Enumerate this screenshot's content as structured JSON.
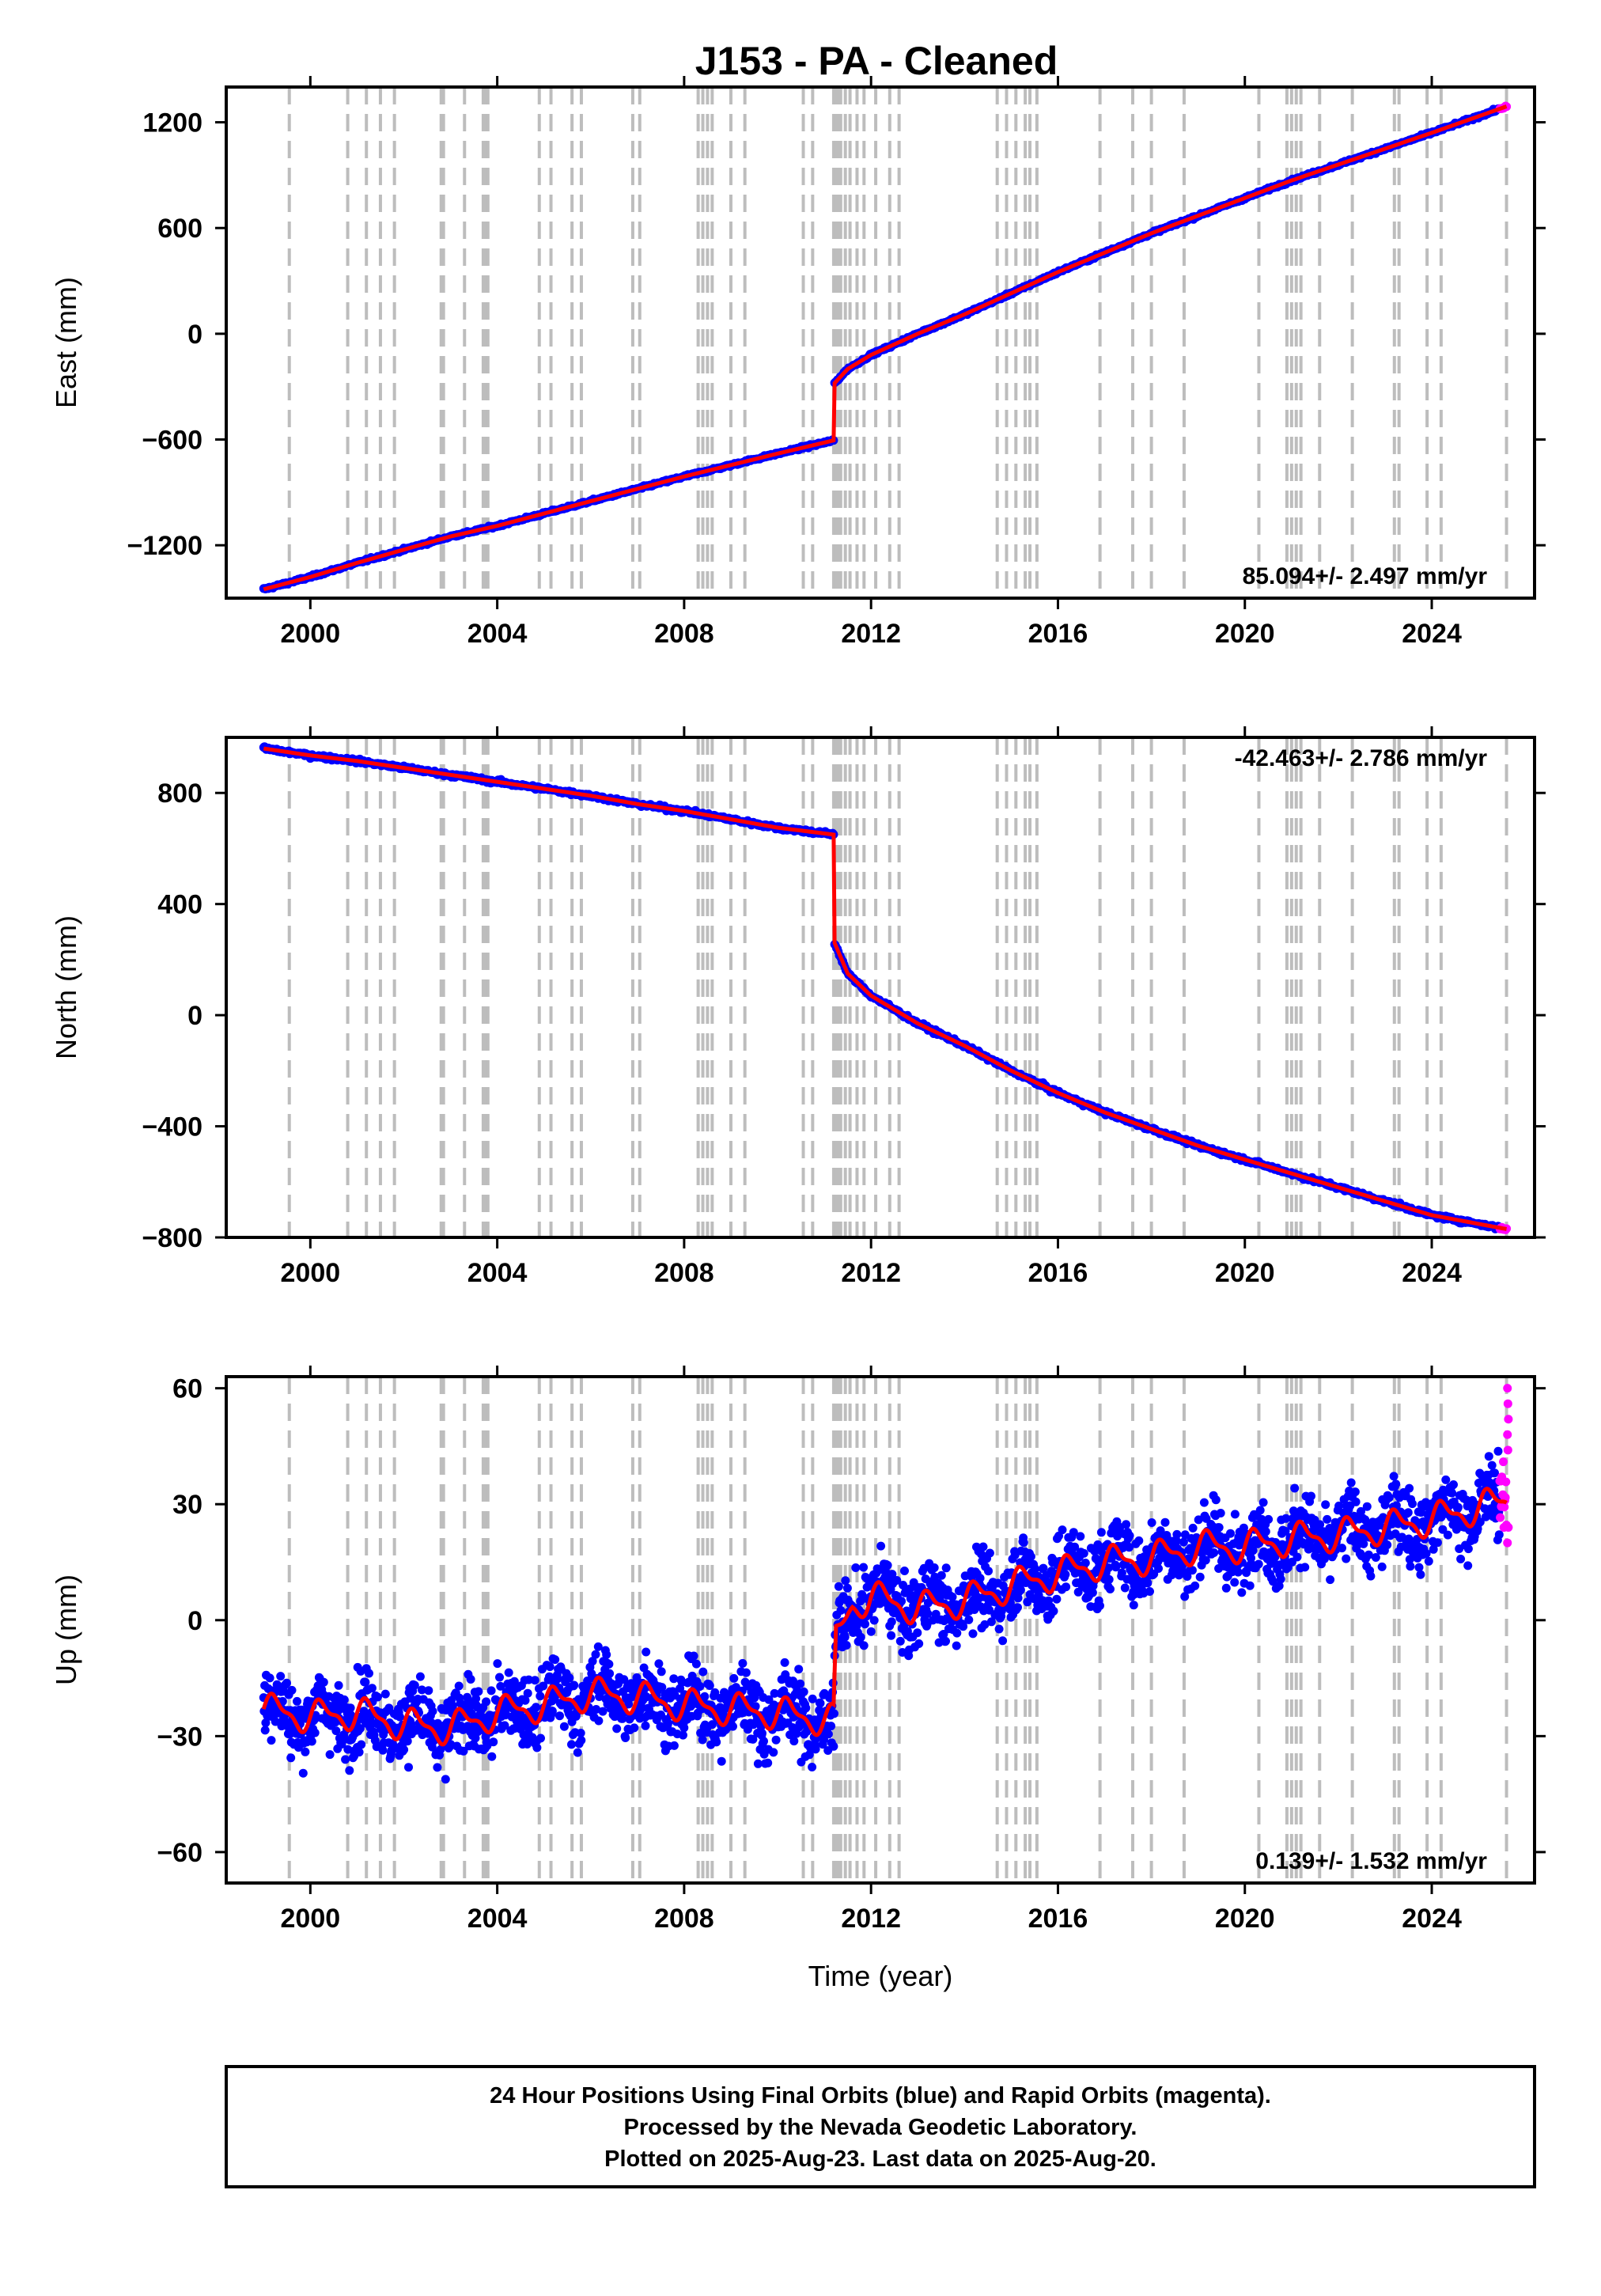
{
  "title": "J153  - PA - Cleaned",
  "footer": {
    "line1": "24 Hour Positions Using Final Orbits (blue) and Rapid Orbits (magenta).",
    "line2": "Processed by the Nevada Geodetic Laboratory.",
    "line3": "Plotted on 2025-Aug-23. Last data on 2025-Aug-20."
  },
  "colors": {
    "final": "#0000ff",
    "rapid": "#ff00ff",
    "model": "#ff0000",
    "events": "#bdbdbd"
  },
  "chart_data": [
    {
      "type": "scatter",
      "ylabel": "East (mm)",
      "xlabel": "",
      "rate_label": "85.094+/- 2.497 mm/yr",
      "xlim": [
        1998.2,
        2026.2
      ],
      "ylim": [
        -1500,
        1400
      ],
      "xticks": [
        2000,
        2004,
        2008,
        2012,
        2016,
        2020,
        2024
      ],
      "yticks": [
        -1200,
        -600,
        0,
        600,
        1200
      ],
      "series": [
        {
          "values": [
            [
              1999.0,
              -1450
            ],
            [
              2000.0,
              -1380
            ],
            [
              2001.0,
              -1300
            ],
            [
              2002.0,
              -1225
            ],
            [
              2003.0,
              -1150
            ],
            [
              2004.0,
              -1090
            ],
            [
              2005.0,
              -1020
            ],
            [
              2006.0,
              -950
            ],
            [
              2007.0,
              -880
            ],
            [
              2008.0,
              -810
            ],
            [
              2009.0,
              -745
            ],
            [
              2010.0,
              -680
            ],
            [
              2011.2,
              -605
            ],
            [
              2011.22,
              -280
            ],
            [
              2011.5,
              -200
            ],
            [
              2012.0,
              -120
            ],
            [
              2013.0,
              0
            ],
            [
              2014.0,
              110
            ],
            [
              2015.0,
              230
            ],
            [
              2016.0,
              350
            ],
            [
              2017.0,
              460
            ],
            [
              2018.0,
              570
            ],
            [
              2019.0,
              670
            ],
            [
              2020.0,
              770
            ],
            [
              2021.0,
              870
            ],
            [
              2022.0,
              960
            ],
            [
              2023.0,
              1050
            ],
            [
              2024.0,
              1140
            ],
            [
              2025.6,
              1290
            ]
          ]
        }
      ]
    },
    {
      "type": "scatter",
      "ylabel": "North (mm)",
      "xlabel": "",
      "rate_label": "-42.463+/- 2.786 mm/yr",
      "xlim": [
        1998.2,
        2026.2
      ],
      "ylim": [
        -800,
        1000
      ],
      "xticks": [
        2000,
        2004,
        2008,
        2012,
        2016,
        2020,
        2024
      ],
      "yticks": [
        -800,
        -400,
        0,
        400,
        800
      ],
      "series": [
        {
          "values": [
            [
              1999.0,
              960
            ],
            [
              2000.0,
              935
            ],
            [
              2001.0,
              915
            ],
            [
              2002.0,
              890
            ],
            [
              2003.0,
              865
            ],
            [
              2004.0,
              840
            ],
            [
              2005.0,
              815
            ],
            [
              2006.0,
              790
            ],
            [
              2007.0,
              760
            ],
            [
              2008.0,
              735
            ],
            [
              2009.0,
              705
            ],
            [
              2010.0,
              675
            ],
            [
              2011.2,
              650
            ],
            [
              2011.22,
              260
            ],
            [
              2011.5,
              150
            ],
            [
              2012.0,
              70
            ],
            [
              2013.0,
              -30
            ],
            [
              2014.0,
              -110
            ],
            [
              2015.0,
              -200
            ],
            [
              2016.0,
              -280
            ],
            [
              2017.0,
              -350
            ],
            [
              2018.0,
              -410
            ],
            [
              2019.0,
              -470
            ],
            [
              2020.0,
              -520
            ],
            [
              2021.0,
              -570
            ],
            [
              2022.0,
              -620
            ],
            [
              2023.0,
              -670
            ],
            [
              2024.0,
              -720
            ],
            [
              2025.6,
              -770
            ]
          ]
        }
      ]
    },
    {
      "type": "scatter",
      "ylabel": "Up (mm)",
      "xlabel": "Time (year)",
      "rate_label": "0.139+/- 1.532 mm/yr",
      "xlim": [
        1998.2,
        2026.2
      ],
      "ylim": [
        -68,
        63
      ],
      "xticks": [
        2000,
        2004,
        2008,
        2012,
        2016,
        2020,
        2024
      ],
      "yticks": [
        -60,
        -30,
        0,
        30,
        60
      ],
      "series": [
        {
          "values": [
            [
              1999.0,
              -23
            ],
            [
              2000.0,
              -25
            ],
            [
              2001.0,
              -24
            ],
            [
              2002.0,
              -27
            ],
            [
              2003.0,
              -28
            ],
            [
              2004.0,
              -24
            ],
            [
              2005.0,
              -22
            ],
            [
              2006.0,
              -19
            ],
            [
              2007.0,
              -20
            ],
            [
              2008.0,
              -22
            ],
            [
              2009.0,
              -23
            ],
            [
              2010.0,
              -24
            ],
            [
              2011.2,
              -26
            ],
            [
              2011.25,
              -5
            ],
            [
              2011.6,
              4
            ],
            [
              2012.0,
              6
            ],
            [
              2013.0,
              3
            ],
            [
              2014.0,
              5
            ],
            [
              2015.0,
              9
            ],
            [
              2016.0,
              12
            ],
            [
              2017.0,
              15
            ],
            [
              2018.0,
              16
            ],
            [
              2019.0,
              19
            ],
            [
              2020.0,
              19
            ],
            [
              2021.0,
              21
            ],
            [
              2022.0,
              22
            ],
            [
              2023.0,
              24
            ],
            [
              2024.0,
              26
            ],
            [
              2025.6,
              31
            ]
          ]
        }
      ]
    }
  ]
}
